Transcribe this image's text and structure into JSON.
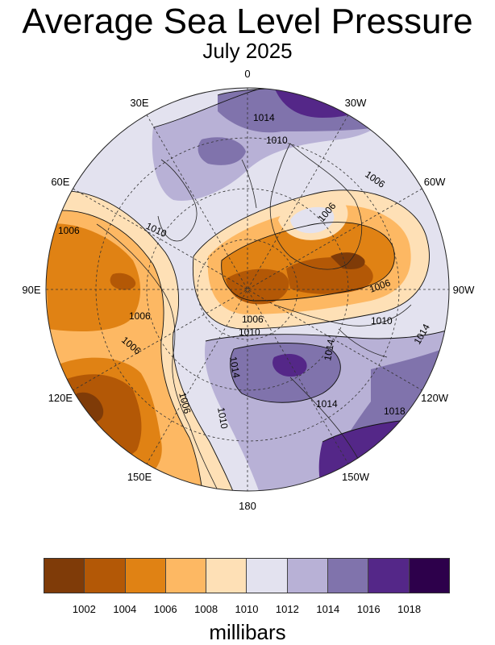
{
  "header": {
    "title": "Average Sea Level Pressure",
    "subtitle": "July 2025"
  },
  "map": {
    "projection": "north-polar-stereographic",
    "longitude_labels": [
      {
        "text": "0",
        "lon": 0
      },
      {
        "text": "30W",
        "lon": -30
      },
      {
        "text": "60W",
        "lon": -60
      },
      {
        "text": "90W",
        "lon": -90
      },
      {
        "text": "120W",
        "lon": -120
      },
      {
        "text": "150W",
        "lon": -150
      },
      {
        "text": "180",
        "lon": 180
      },
      {
        "text": "150E",
        "lon": 150
      },
      {
        "text": "120E",
        "lon": 120
      },
      {
        "text": "90E",
        "lon": 90
      },
      {
        "text": "60E",
        "lon": 60
      },
      {
        "text": "30E",
        "lon": 30
      }
    ],
    "contour_labels": [
      "1014",
      "1010",
      "1006",
      "1006",
      "1006",
      "1006",
      "1010",
      "1006",
      "1006",
      "1006",
      "1010",
      "1010",
      "1014",
      "1014",
      "1014",
      "1010",
      "1006",
      "1014",
      "1018"
    ]
  },
  "legend": {
    "colors": [
      "#7f3b08",
      "#b35806",
      "#e08214",
      "#fdb863",
      "#fee0b6",
      "#e3e2ef",
      "#b8b1d6",
      "#8073ac",
      "#542788",
      "#2d004b"
    ],
    "tick_labels": [
      "1002",
      "1004",
      "1006",
      "1008",
      "1010",
      "1012",
      "1014",
      "1016",
      "1018"
    ],
    "units": "millibars",
    "min": 1000,
    "max": 1020,
    "step": 2
  }
}
